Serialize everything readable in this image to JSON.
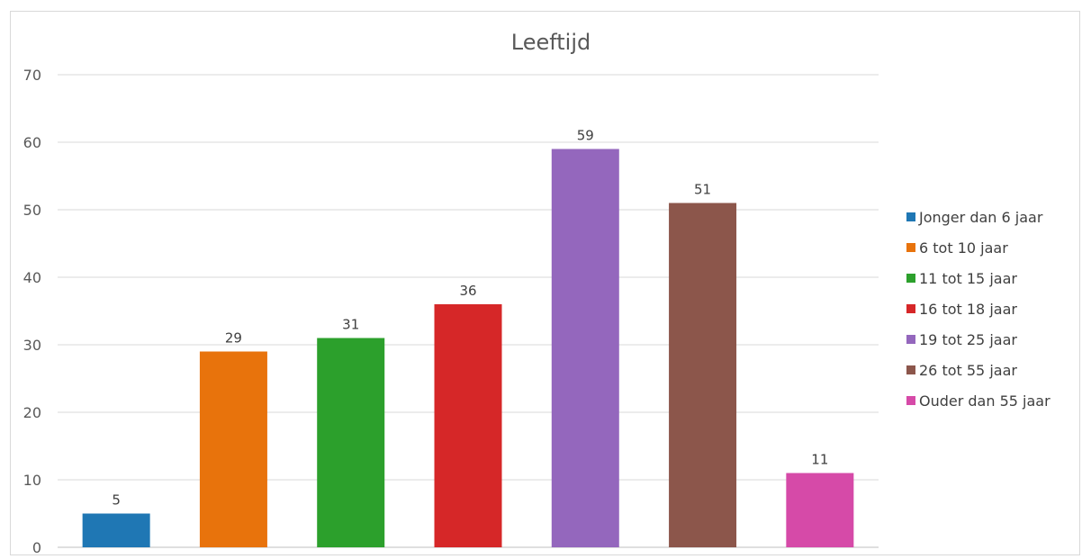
{
  "chart_data": {
    "type": "bar",
    "title": "Leeftijd",
    "xlabel": "",
    "ylabel": "",
    "ylim": [
      0,
      70
    ],
    "yticks": [
      0,
      10,
      20,
      30,
      40,
      50,
      60,
      70
    ],
    "grid": true,
    "legend_position": "right",
    "series": [
      {
        "name": "Jonger dan 6 jaar",
        "value": 5,
        "color": "#1f77b4"
      },
      {
        "name": "6 tot 10 jaar",
        "value": 29,
        "color": "#e8730c"
      },
      {
        "name": "11 tot 15 jaar",
        "value": 31,
        "color": "#2ca02c"
      },
      {
        "name": "16 tot 18 jaar",
        "value": 36,
        "color": "#d62728"
      },
      {
        "name": "19 tot 25 jaar",
        "value": 59,
        "color": "#9467bd"
      },
      {
        "name": "26 tot 55 jaar",
        "value": 51,
        "color": "#8c564b"
      },
      {
        "name": "Ouder dan 55 jaar",
        "value": 11,
        "color": "#d64aa8"
      }
    ]
  }
}
